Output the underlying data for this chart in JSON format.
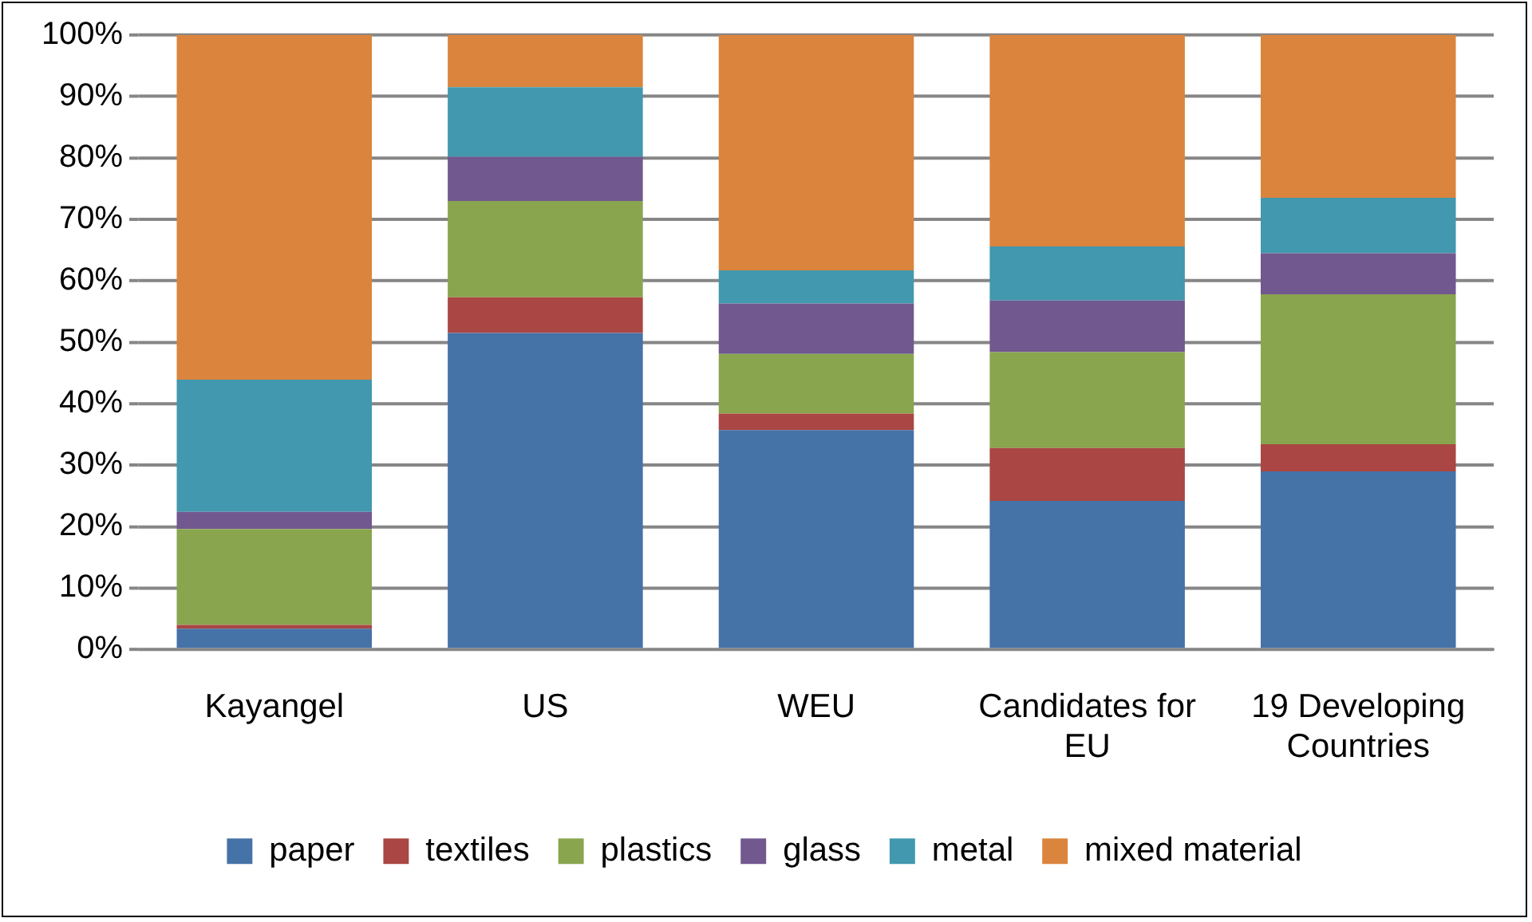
{
  "chart_data": {
    "type": "bar",
    "stacked": true,
    "categories": [
      "Kayangel",
      "US",
      "WEU",
      "Candidates for EU",
      "19 Developing Countries"
    ],
    "series": [
      {
        "name": "paper",
        "color": "#4572a7",
        "values": [
          3.4,
          51.5,
          35.7,
          24.2,
          29.0
        ]
      },
      {
        "name": "textiles",
        "color": "#aa4643",
        "values": [
          0.6,
          5.8,
          2.7,
          8.6,
          4.4
        ]
      },
      {
        "name": "plastics",
        "color": "#89a54e",
        "values": [
          15.6,
          15.7,
          9.7,
          15.6,
          24.4
        ]
      },
      {
        "name": "glass",
        "color": "#71588f",
        "values": [
          2.8,
          7.2,
          8.2,
          8.4,
          6.7
        ]
      },
      {
        "name": "metal",
        "color": "#4198af",
        "values": [
          21.5,
          11.3,
          5.4,
          8.8,
          9.0
        ]
      },
      {
        "name": "mixed material",
        "color": "#db843d",
        "values": [
          56.1,
          8.5,
          38.3,
          34.4,
          26.5
        ]
      }
    ],
    "ylim": [
      0,
      100
    ],
    "yticks": [
      {
        "value": 0,
        "label": "0%"
      },
      {
        "value": 10,
        "label": "10%"
      },
      {
        "value": 20,
        "label": "20%"
      },
      {
        "value": 30,
        "label": "30%"
      },
      {
        "value": 40,
        "label": "40%"
      },
      {
        "value": 50,
        "label": "50%"
      },
      {
        "value": 60,
        "label": "60%"
      },
      {
        "value": 70,
        "label": "70%"
      },
      {
        "value": 80,
        "label": "80%"
      },
      {
        "value": 90,
        "label": "90%"
      },
      {
        "value": 100,
        "label": "100%"
      }
    ],
    "grid": "y",
    "legend": "bottom"
  }
}
